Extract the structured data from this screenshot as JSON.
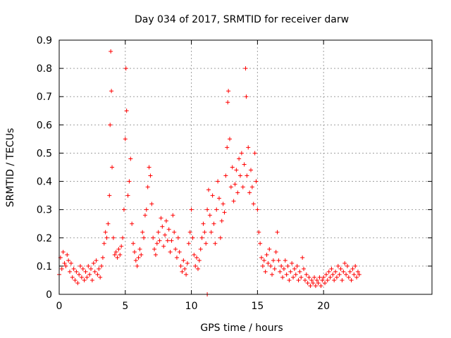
{
  "chart_data": {
    "type": "scatter",
    "title": "Day 034 of 2017, SRMTID for receiver darw",
    "xlabel": "GPS time / hours",
    "ylabel": "SRMTID / TECUs",
    "xlim": [
      0,
      28.2
    ],
    "ylim": [
      0,
      0.9
    ],
    "x_ticks": [
      0,
      5,
      10,
      15,
      20
    ],
    "x_tick_labels": [
      "0",
      "5",
      "10",
      "15",
      "20"
    ],
    "y_ticks": [
      0,
      0.1,
      0.2,
      0.3,
      0.4,
      0.5,
      0.6,
      0.7,
      0.8,
      0.9
    ],
    "y_tick_labels": [
      "0",
      "0.1",
      "0.2",
      "0.3",
      "0.4",
      "0.5",
      "0.6",
      "0.7",
      "0.8",
      "0.9"
    ],
    "grid": true,
    "marker": "plus",
    "color": "#ff0000",
    "series": [
      {
        "name": "SRMTID",
        "points": [
          [
            0.0,
            0.07
          ],
          [
            0.1,
            0.13
          ],
          [
            0.2,
            0.09
          ],
          [
            0.3,
            0.15
          ],
          [
            0.4,
            0.11
          ],
          [
            0.5,
            0.1
          ],
          [
            0.6,
            0.14
          ],
          [
            0.7,
            0.12
          ],
          [
            0.8,
            0.08
          ],
          [
            0.9,
            0.11
          ],
          [
            1.0,
            0.06
          ],
          [
            1.1,
            0.09
          ],
          [
            1.2,
            0.05
          ],
          [
            1.3,
            0.08
          ],
          [
            1.4,
            0.04
          ],
          [
            1.5,
            0.07
          ],
          [
            1.6,
            0.1
          ],
          [
            1.7,
            0.06
          ],
          [
            1.8,
            0.09
          ],
          [
            1.9,
            0.05
          ],
          [
            2.0,
            0.08
          ],
          [
            2.1,
            0.06
          ],
          [
            2.2,
            0.1
          ],
          [
            2.3,
            0.07
          ],
          [
            2.4,
            0.09
          ],
          [
            2.5,
            0.05
          ],
          [
            2.6,
            0.11
          ],
          [
            2.7,
            0.08
          ],
          [
            2.8,
            0.12
          ],
          [
            2.9,
            0.07
          ],
          [
            3.0,
            0.09
          ],
          [
            3.1,
            0.06
          ],
          [
            3.2,
            0.1
          ],
          [
            3.3,
            0.13
          ],
          [
            3.4,
            0.18
          ],
          [
            3.5,
            0.22
          ],
          [
            3.6,
            0.2
          ],
          [
            3.7,
            0.25
          ],
          [
            3.8,
            0.35
          ],
          [
            3.85,
            0.6
          ],
          [
            3.9,
            0.86
          ],
          [
            3.95,
            0.72
          ],
          [
            4.0,
            0.45
          ],
          [
            4.1,
            0.2
          ],
          [
            4.2,
            0.14
          ],
          [
            4.3,
            0.15
          ],
          [
            4.4,
            0.13
          ],
          [
            4.5,
            0.16
          ],
          [
            4.6,
            0.14
          ],
          [
            4.7,
            0.17
          ],
          [
            4.8,
            0.2
          ],
          [
            4.9,
            0.3
          ],
          [
            5.0,
            0.55
          ],
          [
            5.05,
            0.8
          ],
          [
            5.1,
            0.65
          ],
          [
            5.2,
            0.35
          ],
          [
            5.3,
            0.4
          ],
          [
            5.4,
            0.48
          ],
          [
            5.5,
            0.25
          ],
          [
            5.6,
            0.18
          ],
          [
            5.7,
            0.15
          ],
          [
            5.8,
            0.12
          ],
          [
            5.9,
            0.1
          ],
          [
            6.0,
            0.13
          ],
          [
            6.1,
            0.16
          ],
          [
            6.2,
            0.14
          ],
          [
            6.3,
            0.22
          ],
          [
            6.4,
            0.2
          ],
          [
            6.5,
            0.28
          ],
          [
            6.6,
            0.3
          ],
          [
            6.7,
            0.38
          ],
          [
            6.8,
            0.45
          ],
          [
            6.9,
            0.42
          ],
          [
            7.0,
            0.32
          ],
          [
            7.1,
            0.2
          ],
          [
            7.2,
            0.16
          ],
          [
            7.3,
            0.14
          ],
          [
            7.4,
            0.18
          ],
          [
            7.5,
            0.22
          ],
          [
            7.6,
            0.19
          ],
          [
            7.7,
            0.27
          ],
          [
            7.8,
            0.24
          ],
          [
            7.9,
            0.17
          ],
          [
            8.0,
            0.21
          ],
          [
            8.1,
            0.26
          ],
          [
            8.2,
            0.19
          ],
          [
            8.3,
            0.23
          ],
          [
            8.4,
            0.15
          ],
          [
            8.5,
            0.19
          ],
          [
            8.6,
            0.28
          ],
          [
            8.7,
            0.22
          ],
          [
            8.8,
            0.16
          ],
          [
            8.9,
            0.13
          ],
          [
            9.0,
            0.2
          ],
          [
            9.1,
            0.15
          ],
          [
            9.2,
            0.1
          ],
          [
            9.3,
            0.08
          ],
          [
            9.4,
            0.12
          ],
          [
            9.5,
            0.09
          ],
          [
            9.6,
            0.07
          ],
          [
            9.7,
            0.11
          ],
          [
            9.8,
            0.18
          ],
          [
            9.9,
            0.22
          ],
          [
            10.0,
            0.3
          ],
          [
            10.1,
            0.2
          ],
          [
            10.2,
            0.14
          ],
          [
            10.3,
            0.1
          ],
          [
            10.4,
            0.13
          ],
          [
            10.5,
            0.09
          ],
          [
            10.6,
            0.12
          ],
          [
            10.7,
            0.16
          ],
          [
            10.8,
            0.2
          ],
          [
            10.9,
            0.25
          ],
          [
            11.0,
            0.22
          ],
          [
            11.1,
            0.18
          ],
          [
            11.2,
            0.3
          ],
          [
            11.3,
            0.37
          ],
          [
            11.4,
            0.28
          ],
          [
            11.5,
            0.22
          ],
          [
            11.6,
            0.35
          ],
          [
            11.7,
            0.25
          ],
          [
            11.8,
            0.18
          ],
          [
            11.9,
            0.3
          ],
          [
            12.0,
            0.4
          ],
          [
            12.1,
            0.34
          ],
          [
            12.2,
            0.2
          ],
          [
            12.3,
            0.26
          ],
          [
            12.4,
            0.32
          ],
          [
            12.5,
            0.29
          ],
          [
            12.6,
            0.42
          ],
          [
            12.7,
            0.52
          ],
          [
            12.75,
            0.68
          ],
          [
            12.8,
            0.72
          ],
          [
            12.9,
            0.55
          ],
          [
            13.0,
            0.38
          ],
          [
            13.1,
            0.45
          ],
          [
            13.2,
            0.33
          ],
          [
            13.3,
            0.39
          ],
          [
            13.4,
            0.44
          ],
          [
            13.5,
            0.36
          ],
          [
            13.6,
            0.48
          ],
          [
            13.7,
            0.42
          ],
          [
            13.8,
            0.5
          ],
          [
            13.9,
            0.38
          ],
          [
            14.0,
            0.46
          ],
          [
            14.1,
            0.8
          ],
          [
            14.15,
            0.7
          ],
          [
            14.2,
            0.42
          ],
          [
            14.3,
            0.52
          ],
          [
            14.4,
            0.36
          ],
          [
            14.5,
            0.44
          ],
          [
            14.6,
            0.38
          ],
          [
            14.7,
            0.32
          ],
          [
            14.8,
            0.5
          ],
          [
            14.9,
            0.4
          ],
          [
            15.0,
            0.3
          ],
          [
            15.1,
            0.22
          ],
          [
            15.2,
            0.18
          ],
          [
            15.3,
            0.13
          ],
          [
            15.4,
            0.1
          ],
          [
            15.5,
            0.12
          ],
          [
            15.6,
            0.08
          ],
          [
            15.7,
            0.14
          ],
          [
            15.8,
            0.11
          ],
          [
            15.9,
            0.16
          ],
          [
            16.0,
            0.1
          ],
          [
            16.1,
            0.07
          ],
          [
            16.2,
            0.12
          ],
          [
            16.3,
            0.09
          ],
          [
            16.4,
            0.15
          ],
          [
            16.5,
            0.22
          ],
          [
            16.6,
            0.12
          ],
          [
            16.7,
            0.08
          ],
          [
            16.8,
            0.1
          ],
          [
            16.9,
            0.06
          ],
          [
            17.0,
            0.09
          ],
          [
            17.1,
            0.12
          ],
          [
            17.2,
            0.07
          ],
          [
            17.3,
            0.1
          ],
          [
            17.4,
            0.05
          ],
          [
            17.5,
            0.08
          ],
          [
            17.6,
            0.11
          ],
          [
            17.7,
            0.06
          ],
          [
            17.8,
            0.09
          ],
          [
            17.9,
            0.07
          ],
          [
            18.0,
            0.1
          ],
          [
            18.1,
            0.05
          ],
          [
            18.2,
            0.08
          ],
          [
            18.3,
            0.06
          ],
          [
            18.4,
            0.13
          ],
          [
            18.5,
            0.09
          ],
          [
            18.6,
            0.05
          ],
          [
            18.7,
            0.07
          ],
          [
            18.8,
            0.04
          ],
          [
            18.9,
            0.06
          ],
          [
            19.0,
            0.03
          ],
          [
            19.1,
            0.05
          ],
          [
            19.2,
            0.04
          ],
          [
            19.3,
            0.06
          ],
          [
            19.4,
            0.03
          ],
          [
            19.5,
            0.05
          ],
          [
            19.6,
            0.04
          ],
          [
            19.7,
            0.06
          ],
          [
            19.8,
            0.03
          ],
          [
            19.9,
            0.05
          ],
          [
            20.0,
            0.06
          ],
          [
            20.1,
            0.04
          ],
          [
            20.2,
            0.07
          ],
          [
            20.3,
            0.05
          ],
          [
            20.4,
            0.08
          ],
          [
            20.5,
            0.06
          ],
          [
            20.6,
            0.09
          ],
          [
            20.7,
            0.07
          ],
          [
            20.8,
            0.05
          ],
          [
            20.9,
            0.08
          ],
          [
            21.0,
            0.06
          ],
          [
            21.1,
            0.1
          ],
          [
            21.2,
            0.07
          ],
          [
            21.3,
            0.09
          ],
          [
            21.4,
            0.05
          ],
          [
            21.5,
            0.08
          ],
          [
            21.6,
            0.11
          ],
          [
            21.7,
            0.07
          ],
          [
            21.8,
            0.1
          ],
          [
            21.9,
            0.06
          ],
          [
            22.0,
            0.08
          ],
          [
            22.1,
            0.05
          ],
          [
            22.2,
            0.09
          ],
          [
            22.3,
            0.07
          ],
          [
            22.4,
            0.1
          ],
          [
            22.5,
            0.06
          ],
          [
            22.6,
            0.08
          ],
          [
            22.7,
            0.07
          ],
          [
            11.2,
            0.0
          ]
        ]
      }
    ]
  }
}
